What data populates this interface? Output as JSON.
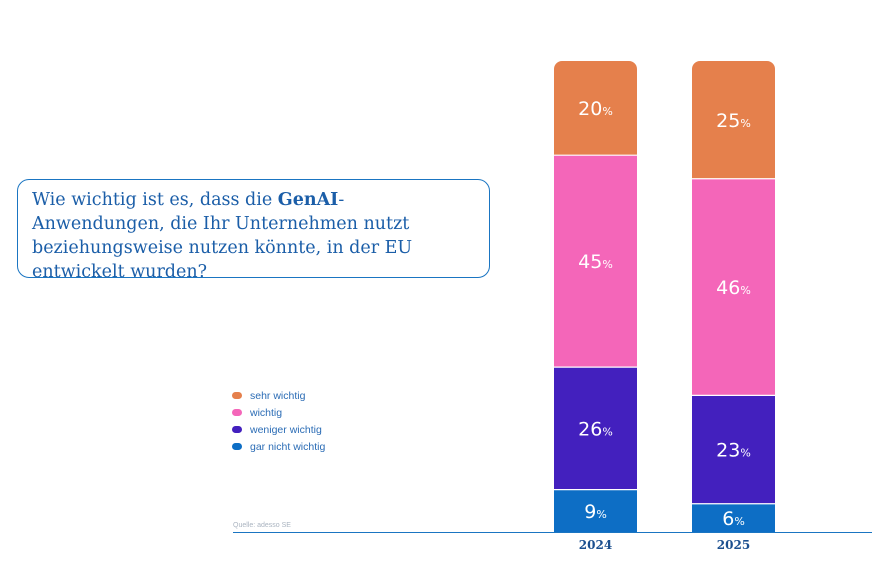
{
  "question": {
    "part1": "Wie wichtig ist es, dass die ",
    "highlight": "GenAI",
    "part2": "-Anwendungen, die Ihr Unternehmen nutzt beziehungsweise nutzen könnte, in der EU entwickelt wurden?"
  },
  "source": "Quelle: adesso SE",
  "chart_data": {
    "type": "bar",
    "stacked": true,
    "unit": "%",
    "categories": [
      "2024",
      "2025"
    ],
    "series": [
      {
        "name": "gar nicht wichtig",
        "color": "#0d6ec5",
        "values": [
          9,
          6
        ]
      },
      {
        "name": "weniger wichtig",
        "color": "#4320be",
        "values": [
          26,
          23
        ]
      },
      {
        "name": "wichtig",
        "color": "#f466b9",
        "values": [
          45,
          46
        ]
      },
      {
        "name": "sehr wichtig",
        "color": "#e5804c",
        "values": [
          20,
          25
        ]
      }
    ],
    "legend_order": [
      "sehr wichtig",
      "wichtig",
      "weniger wichtig",
      "gar nicht wichtig"
    ],
    "legend_position": "left",
    "ylim": [
      0,
      100
    ]
  }
}
